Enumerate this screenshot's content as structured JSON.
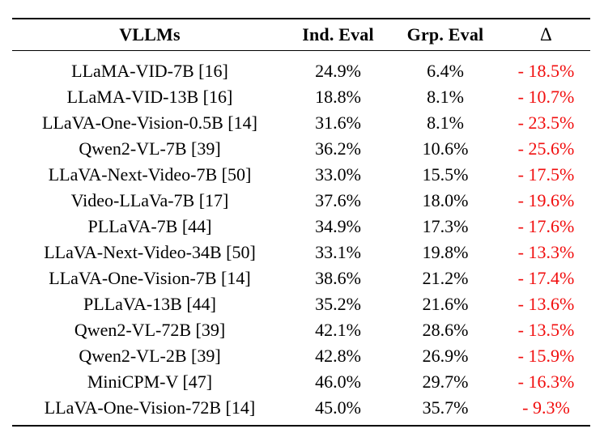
{
  "table": {
    "columns": [
      "VLLMs",
      "Ind. Eval",
      "Grp. Eval",
      "Δ"
    ],
    "rows": [
      {
        "model": "LLaMA-VID-7B [16]",
        "ind_eval": "24.9%",
        "grp_eval": "6.4%",
        "delta": "- 18.5%"
      },
      {
        "model": "LLaMA-VID-13B [16]",
        "ind_eval": "18.8%",
        "grp_eval": "8.1%",
        "delta": "- 10.7%"
      },
      {
        "model": "LLaVA-One-Vision-0.5B [14]",
        "ind_eval": "31.6%",
        "grp_eval": "8.1%",
        "delta": "- 23.5%"
      },
      {
        "model": "Qwen2-VL-7B [39]",
        "ind_eval": "36.2%",
        "grp_eval": "10.6%",
        "delta": "- 25.6%"
      },
      {
        "model": "LLaVA-Next-Video-7B [50]",
        "ind_eval": "33.0%",
        "grp_eval": "15.5%",
        "delta": "- 17.5%"
      },
      {
        "model": "Video-LLaVa-7B [17]",
        "ind_eval": "37.6%",
        "grp_eval": "18.0%",
        "delta": "- 19.6%"
      },
      {
        "model": "PLLaVA-7B [44]",
        "ind_eval": "34.9%",
        "grp_eval": "17.3%",
        "delta": "- 17.6%"
      },
      {
        "model": "LLaVA-Next-Video-34B [50]",
        "ind_eval": "33.1%",
        "grp_eval": "19.8%",
        "delta": "- 13.3%"
      },
      {
        "model": "LLaVA-One-Vision-7B [14]",
        "ind_eval": "38.6%",
        "grp_eval": "21.2%",
        "delta": "- 17.4%"
      },
      {
        "model": "PLLaVA-13B [44]",
        "ind_eval": "35.2%",
        "grp_eval": "21.6%",
        "delta": "- 13.6%"
      },
      {
        "model": "Qwen2-VL-72B [39]",
        "ind_eval": "42.1%",
        "grp_eval": "28.6%",
        "delta": "- 13.5%"
      },
      {
        "model": "Qwen2-VL-2B [39]",
        "ind_eval": "42.8%",
        "grp_eval": "26.9%",
        "delta": "- 15.9%"
      },
      {
        "model": "MiniCPM-V [47]",
        "ind_eval": "46.0%",
        "grp_eval": "29.7%",
        "delta": "- 16.3%"
      },
      {
        "model": "LLaVA-One-Vision-72B [14]",
        "ind_eval": "45.0%",
        "grp_eval": "35.7%",
        "delta": "- 9.3%"
      }
    ]
  },
  "colors": {
    "delta_negative": "#f10e0e",
    "text": "#000000",
    "rule": "#000000",
    "background": "#ffffff"
  }
}
